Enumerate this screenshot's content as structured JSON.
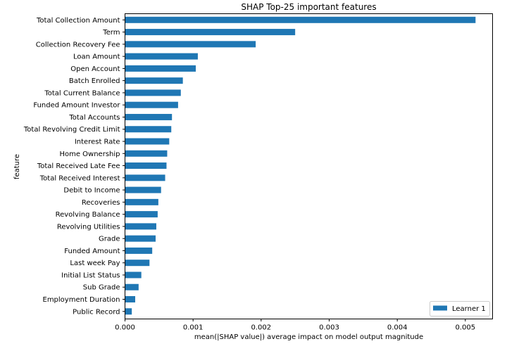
{
  "chart_data": {
    "type": "bar",
    "orientation": "horizontal",
    "title": "SHAP Top-25 important features",
    "xlabel": "mean(|SHAP value|) average impact on model output magnitude",
    "ylabel": "feature",
    "xlim": [
      0,
      0.0054
    ],
    "xticks": [
      "0.000",
      "0.001",
      "0.002",
      "0.003",
      "0.004",
      "0.005"
    ],
    "grid": false,
    "legend_position": "lower-right",
    "bar_color": "#1f77b4",
    "categories": [
      "Total Collection Amount",
      "Term",
      "Collection Recovery Fee",
      "Loan Amount",
      "Open Account",
      "Batch Enrolled",
      "Total Current Balance",
      "Funded Amount Investor",
      "Total Accounts",
      "Total Revolving Credit Limit",
      "Interest Rate",
      "Home Ownership",
      "Total Received Late Fee",
      "Total Received Interest",
      "Debit to Income",
      "Recoveries",
      "Revolving Balance",
      "Revolving Utilities",
      "Grade",
      "Funded Amount",
      "Last week Pay",
      "Initial List Status",
      "Sub Grade",
      "Employment Duration",
      "Public Record"
    ],
    "series": [
      {
        "name": "Learner 1",
        "values": [
          0.00515,
          0.0025,
          0.00192,
          0.00107,
          0.00104,
          0.00085,
          0.00082,
          0.00078,
          0.00069,
          0.00068,
          0.00065,
          0.00062,
          0.00061,
          0.00059,
          0.00053,
          0.00049,
          0.00048,
          0.00046,
          0.00045,
          0.0004,
          0.00036,
          0.00024,
          0.0002,
          0.00015,
          0.0001
        ]
      }
    ]
  }
}
